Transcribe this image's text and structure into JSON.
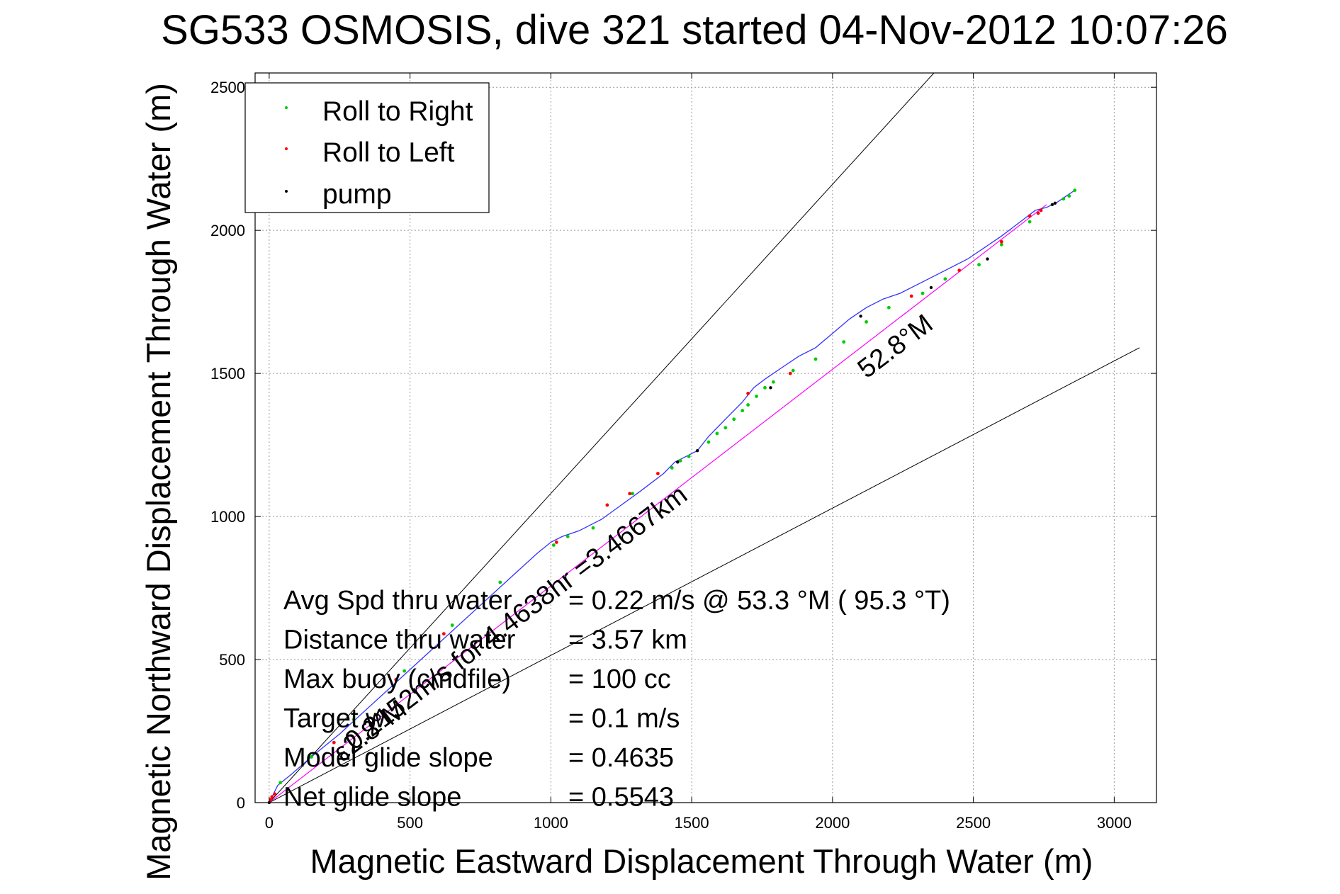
{
  "chart_data": {
    "type": "scatter",
    "title": "SG533 OSMOSIS, dive 321 started 04-Nov-2012 10:07:26",
    "xlabel": "Magnetic Eastward Displacement Through Water (m)",
    "ylabel": "Magnetic Northward Displacement Through Water (m)",
    "xlim": [
      -50,
      3150
    ],
    "ylim": [
      0,
      2550
    ],
    "xticks": [
      0,
      500,
      1000,
      1500,
      2000,
      2500,
      3000
    ],
    "yticks": [
      0,
      500,
      1000,
      1500,
      2000,
      2500
    ],
    "grid": true,
    "legend": {
      "location": "top-left",
      "entries": [
        {
          "label": "Roll to Right",
          "color": "#00cc00"
        },
        {
          "label": "Roll to Left",
          "color": "#ff0000"
        },
        {
          "label": "pump",
          "color": "#000000"
        }
      ]
    },
    "track": {
      "name": "displacement through water",
      "color": "#3333ff",
      "x": [
        0,
        30,
        80,
        150,
        250,
        350,
        450,
        550,
        650,
        750,
        850,
        950,
        1000,
        1040,
        1100,
        1180,
        1250,
        1320,
        1400,
        1440,
        1480,
        1520,
        1560,
        1620,
        1680,
        1720,
        1760,
        1820,
        1880,
        1940,
        2000,
        2060,
        2120,
        2180,
        2240,
        2300,
        2360,
        2420,
        2480,
        2540,
        2600,
        2640,
        2680,
        2720,
        2760,
        2800,
        2830,
        2860
      ],
      "y": [
        0,
        60,
        100,
        160,
        240,
        330,
        420,
        510,
        600,
        690,
        780,
        870,
        910,
        930,
        950,
        990,
        1040,
        1090,
        1150,
        1190,
        1210,
        1230,
        1280,
        1340,
        1400,
        1450,
        1480,
        1520,
        1560,
        1590,
        1640,
        1690,
        1730,
        1760,
        1780,
        1810,
        1840,
        1870,
        1900,
        1940,
        1980,
        2010,
        2040,
        2070,
        2080,
        2100,
        2120,
        2140
      ]
    },
    "roll_right_x": [
      40,
      150,
      300,
      480,
      650,
      820,
      1010,
      1060,
      1150,
      1290,
      1430,
      1460,
      1490,
      1560,
      1590,
      1620,
      1650,
      1680,
      1700,
      1730,
      1760,
      1790,
      1860,
      1940,
      2040,
      2120,
      2200,
      2320,
      2400,
      2520,
      2600,
      2700,
      2820,
      2840,
      2860
    ],
    "roll_right_y": [
      70,
      160,
      290,
      460,
      620,
      770,
      900,
      930,
      960,
      1080,
      1170,
      1195,
      1210,
      1260,
      1290,
      1310,
      1340,
      1370,
      1390,
      1420,
      1450,
      1470,
      1510,
      1550,
      1610,
      1680,
      1730,
      1780,
      1830,
      1880,
      1950,
      2030,
      2110,
      2120,
      2140
    ],
    "roll_left_x": [
      5,
      10,
      20,
      230,
      450,
      620,
      1020,
      1200,
      1280,
      1380,
      1700,
      1850,
      2280,
      2450,
      2600,
      2700,
      2730,
      2740
    ],
    "roll_left_y": [
      10,
      20,
      30,
      210,
      430,
      590,
      910,
      1040,
      1080,
      1150,
      1430,
      1500,
      1770,
      1860,
      1960,
      2050,
      2060,
      2070
    ],
    "pump_x": [
      0,
      1450,
      1520,
      1780,
      2100,
      2350,
      2550,
      2780,
      2790
    ],
    "pump_y": [
      0,
      1190,
      1230,
      1450,
      1700,
      1800,
      1900,
      2090,
      2095
    ],
    "course_line": {
      "x": [
        0,
        2760
      ],
      "y": [
        0,
        2090
      ],
      "color": "#ff00ff"
    },
    "bound_lines": [
      {
        "x": [
          0,
          2360
        ],
        "y": [
          0,
          2550
        ]
      },
      {
        "x": [
          0,
          3090
        ],
        "y": [
          0,
          1590
        ]
      }
    ],
    "annotations": [
      {
        "text": "52.8°M",
        "x": 2120,
        "y": 1480,
        "angle": 37
      },
      {
        "text": "ε2.8°M",
        "x": 260,
        "y": 140,
        "angle": 37
      },
      {
        "text": "0.2152m/s for 4.4638hr =3.4667km",
        "x": 300,
        "y": 180,
        "angle": 37
      }
    ],
    "stats": [
      {
        "label": "Avg Spd thru water",
        "value": "=  0.22 m/s @  53.3 °M ( 95.3 °T)"
      },
      {
        "label": "Distance thru water",
        "value": "=  3.57 km"
      },
      {
        "label": "Max buoy (cmdfile)",
        "value": "= 100 cc"
      },
      {
        "label": "Target w",
        "value": "= 0.1 m/s"
      },
      {
        "label": "Model glide slope",
        "value": "= 0.4635"
      },
      {
        "label": "Net glide slope",
        "value": "= 0.5543"
      }
    ]
  }
}
